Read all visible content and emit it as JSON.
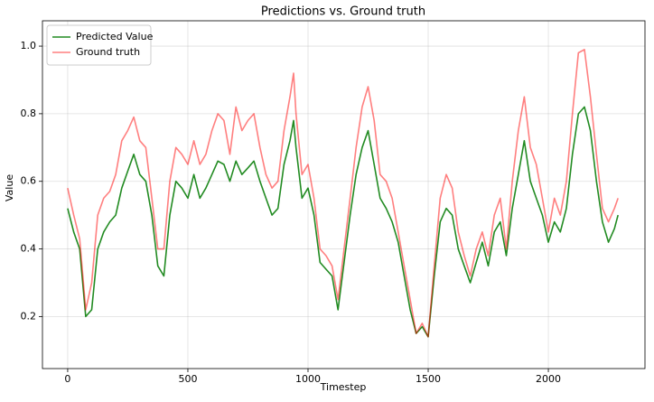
{
  "chart_data": {
    "type": "line",
    "title": "Predictions vs. Ground truth",
    "x_label": "Timestep",
    "y_label": "Value",
    "x": [
      0,
      25,
      50,
      75,
      100,
      125,
      150,
      175,
      200,
      225,
      250,
      275,
      300,
      325,
      350,
      375,
      400,
      425,
      450,
      475,
      500,
      525,
      550,
      575,
      600,
      625,
      650,
      675,
      700,
      725,
      750,
      775,
      800,
      825,
      850,
      875,
      900,
      925,
      940,
      950,
      975,
      1000,
      1025,
      1050,
      1075,
      1100,
      1125,
      1150,
      1175,
      1200,
      1225,
      1250,
      1275,
      1300,
      1325,
      1350,
      1375,
      1400,
      1425,
      1450,
      1475,
      1500,
      1525,
      1550,
      1575,
      1600,
      1625,
      1650,
      1675,
      1700,
      1725,
      1750,
      1775,
      1800,
      1825,
      1850,
      1875,
      1900,
      1925,
      1950,
      1975,
      2000,
      2025,
      2050,
      2075,
      2100,
      2125,
      2150,
      2175,
      2200,
      2225,
      2250,
      2275,
      2290
    ],
    "series": [
      {
        "name": "Predicted Value",
        "color": "#228b22",
        "opacity": 1,
        "values": [
          0.52,
          0.45,
          0.4,
          0.2,
          0.22,
          0.4,
          0.45,
          0.48,
          0.5,
          0.58,
          0.63,
          0.68,
          0.62,
          0.6,
          0.5,
          0.35,
          0.32,
          0.5,
          0.6,
          0.58,
          0.55,
          0.62,
          0.55,
          0.58,
          0.62,
          0.66,
          0.65,
          0.6,
          0.66,
          0.62,
          0.64,
          0.66,
          0.6,
          0.55,
          0.5,
          0.52,
          0.65,
          0.72,
          0.78,
          0.7,
          0.55,
          0.58,
          0.5,
          0.36,
          0.34,
          0.32,
          0.22,
          0.36,
          0.5,
          0.62,
          0.7,
          0.75,
          0.65,
          0.55,
          0.52,
          0.48,
          0.42,
          0.32,
          0.22,
          0.15,
          0.17,
          0.14,
          0.32,
          0.48,
          0.52,
          0.5,
          0.4,
          0.35,
          0.3,
          0.36,
          0.42,
          0.35,
          0.45,
          0.48,
          0.38,
          0.52,
          0.62,
          0.72,
          0.6,
          0.55,
          0.5,
          0.42,
          0.48,
          0.45,
          0.52,
          0.68,
          0.8,
          0.82,
          0.75,
          0.6,
          0.48,
          0.42,
          0.46,
          0.5
        ]
      },
      {
        "name": "Ground truth",
        "color": "#ff0000",
        "opacity": 0.5,
        "values": [
          0.58,
          0.5,
          0.43,
          0.22,
          0.3,
          0.5,
          0.55,
          0.57,
          0.62,
          0.72,
          0.75,
          0.79,
          0.72,
          0.7,
          0.55,
          0.4,
          0.4,
          0.6,
          0.7,
          0.68,
          0.65,
          0.72,
          0.65,
          0.68,
          0.75,
          0.8,
          0.78,
          0.68,
          0.82,
          0.75,
          0.78,
          0.8,
          0.7,
          0.62,
          0.58,
          0.6,
          0.75,
          0.85,
          0.92,
          0.8,
          0.62,
          0.65,
          0.55,
          0.4,
          0.38,
          0.35,
          0.25,
          0.4,
          0.55,
          0.7,
          0.82,
          0.88,
          0.78,
          0.62,
          0.6,
          0.55,
          0.45,
          0.35,
          0.25,
          0.15,
          0.18,
          0.14,
          0.35,
          0.55,
          0.62,
          0.58,
          0.45,
          0.38,
          0.32,
          0.4,
          0.45,
          0.38,
          0.5,
          0.55,
          0.4,
          0.6,
          0.75,
          0.85,
          0.7,
          0.65,
          0.55,
          0.45,
          0.55,
          0.5,
          0.6,
          0.8,
          0.98,
          0.99,
          0.85,
          0.68,
          0.52,
          0.48,
          0.52,
          0.55
        ]
      }
    ],
    "xlim": [
      -105,
      2402
    ],
    "ylim": [
      0.046,
      1.075
    ],
    "xticks": [
      0,
      500,
      1000,
      1500,
      2000
    ],
    "yticks": [
      0.2,
      0.4,
      0.6,
      0.8,
      {
        "value": 1,
        "label": "1.0"
      }
    ],
    "grid": true,
    "legend": "upper left"
  }
}
